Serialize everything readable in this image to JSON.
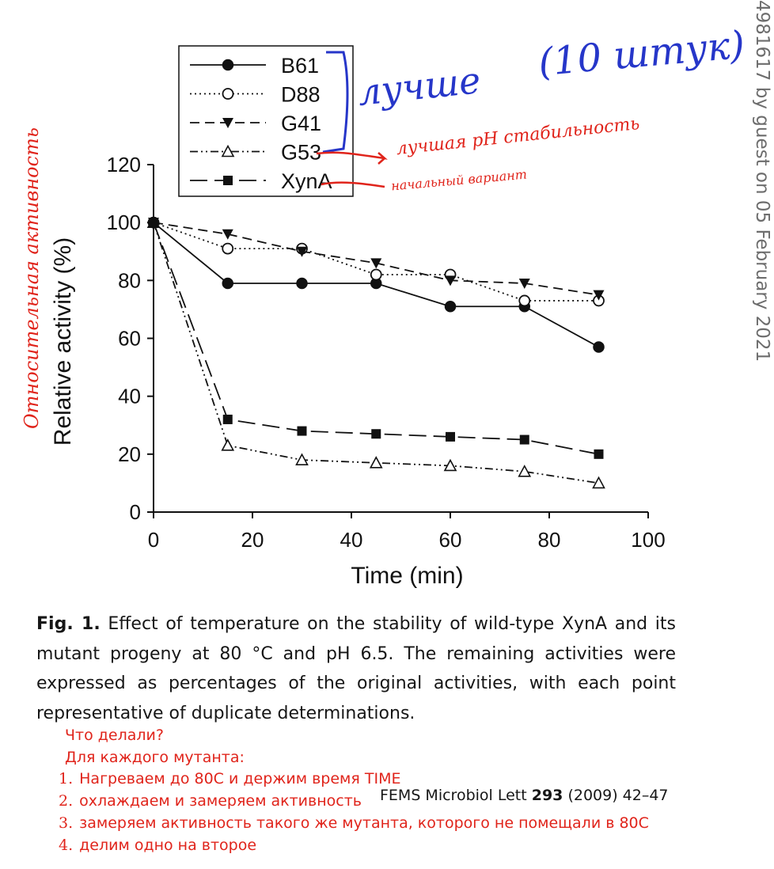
{
  "chart_data": {
    "type": "line",
    "xlabel": "Time (min)",
    "ylabel": "Relative activity (%)",
    "xlim": [
      0,
      100
    ],
    "ylim": [
      0,
      120
    ],
    "xticks": [
      "0",
      "20",
      "40",
      "60",
      "80",
      "100"
    ],
    "yticks": [
      "0",
      "20",
      "40",
      "60",
      "80",
      "100",
      "120"
    ],
    "legend_position": "top-left",
    "x": [
      0,
      15,
      30,
      45,
      60,
      75,
      90
    ],
    "series": [
      {
        "name": "B61",
        "marker": "circle-filled",
        "line": "solid",
        "values": [
          100,
          79,
          79,
          79,
          71,
          71,
          57
        ]
      },
      {
        "name": "D88",
        "marker": "circle-open",
        "line": "dotted",
        "values": [
          100,
          91,
          91,
          82,
          82,
          73,
          73
        ]
      },
      {
        "name": "G41",
        "marker": "triangle-down",
        "line": "dashed",
        "values": [
          100,
          96,
          90,
          86,
          80,
          79,
          75
        ]
      },
      {
        "name": "G53",
        "marker": "triangle-open",
        "line": "dash-dot-dot",
        "values": [
          100,
          23,
          18,
          17,
          16,
          14,
          10
        ]
      },
      {
        "name": "XynA",
        "marker": "square-filled",
        "line": "long-dash",
        "values": [
          100,
          32,
          28,
          27,
          26,
          25,
          20
        ]
      }
    ]
  },
  "annotations": {
    "blue_bracket_note": "лучше",
    "blue_parenthetical": "(10 штук)",
    "g53_note": "лучшая pH стабильность",
    "xyna_note": "начальный вариант",
    "yaxis_note": "Относительная активность"
  },
  "caption": {
    "label": "Fig. 1.",
    "text": " Effect of temperature on the stability of wild-type XynA and its mutant progeny at 80 °C and pH 6.5. The remaining activities were expressed as percentages of the original activities, with each point representative of duplicate determinations."
  },
  "citation": {
    "journal": "FEMS Microbiol Lett ",
    "volume": "293",
    "pages": " (2009) 42–47"
  },
  "side_text": "4981617 by guest on 05 February 2021",
  "notes": [
    {
      "num": "",
      "text": "Что делали?"
    },
    {
      "num": "",
      "text": "Для каждого мутанта:"
    },
    {
      "num": "1.",
      "text": "Нагреваем до 80С и держим время TIME"
    },
    {
      "num": "2.",
      "text": "охлаждаем и замеряем активность"
    },
    {
      "num": "3.",
      "text": "замеряем активность такого же мутанта, которого не помещали в 80С"
    },
    {
      "num": "4.",
      "text": "делим одно на второе"
    }
  ],
  "colors": {
    "ink": "#111111",
    "annotation_red": "#e0241b",
    "annotation_blue": "#2636c9",
    "side_gray": "#6d6d6d"
  }
}
